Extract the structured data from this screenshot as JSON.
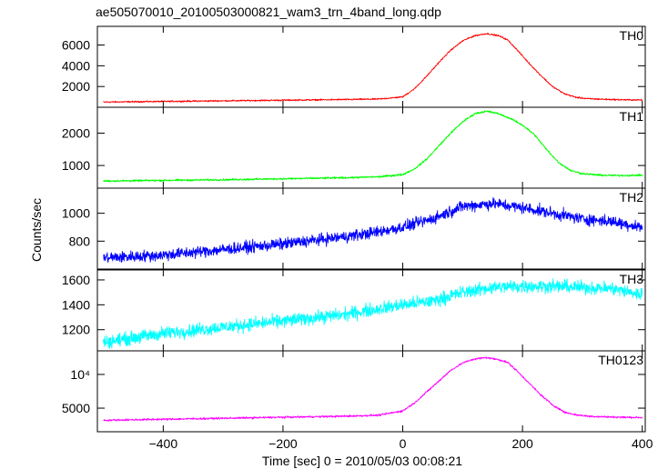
{
  "chart_data": {
    "type": "line",
    "title": "ae505070010_20100503000821_wam3_trn_4band_long.qdp",
    "xlabel": "Time [sec] 0 = 2010/05/03 00:08:21",
    "ylabel": "Counts/sec",
    "xlim": [
      -510,
      405
    ],
    "x_ticks": [
      -400,
      -200,
      0,
      200,
      400
    ],
    "x_tick_labels": [
      "−400",
      "−200",
      "0",
      "200",
      "400"
    ],
    "grid": false,
    "panels": [
      {
        "name": "TH0",
        "color": "#ff0000",
        "ylim": [
          0,
          7800
        ],
        "y_ticks": [
          2000,
          4000,
          6000
        ],
        "y_tick_labels": [
          "2000",
          "4000",
          "6000"
        ],
        "noise": 60,
        "x": [
          -500,
          -400,
          -300,
          -200,
          -100,
          -40,
          0,
          20,
          40,
          60,
          80,
          100,
          120,
          140,
          160,
          175,
          190,
          210,
          230,
          250,
          270,
          290,
          310,
          340,
          370,
          400
        ],
        "y": [
          500,
          560,
          620,
          680,
          740,
          790,
          1000,
          1800,
          3000,
          4300,
          5500,
          6400,
          6900,
          7100,
          6900,
          6500,
          5600,
          4300,
          3100,
          2000,
          1300,
          950,
          820,
          760,
          720,
          700
        ]
      },
      {
        "name": "TH1",
        "color": "#00ff00",
        "ylim": [
          300,
          2800
        ],
        "y_ticks": [
          1000,
          2000
        ],
        "y_tick_labels": [
          "1000",
          "2000"
        ],
        "noise": 25,
        "x": [
          -500,
          -400,
          -300,
          -200,
          -100,
          -40,
          0,
          20,
          40,
          60,
          80,
          100,
          120,
          140,
          160,
          180,
          200,
          220,
          240,
          260,
          280,
          300,
          330,
          360,
          400
        ],
        "y": [
          520,
          540,
          560,
          590,
          620,
          650,
          720,
          900,
          1200,
          1600,
          2000,
          2350,
          2600,
          2680,
          2600,
          2450,
          2250,
          1950,
          1500,
          1100,
          850,
          750,
          700,
          690,
          700
        ]
      },
      {
        "name": "TH2",
        "color": "#0000ff",
        "ylim": [
          600,
          1180
        ],
        "y_ticks": [
          800,
          1000
        ],
        "y_tick_labels": [
          "800",
          "1000"
        ],
        "noise": 35,
        "x": [
          -500,
          -400,
          -300,
          -200,
          -100,
          -50,
          0,
          50,
          100,
          150,
          200,
          250,
          300,
          350,
          400
        ],
        "y": [
          680,
          700,
          740,
          780,
          830,
          860,
          900,
          960,
          1050,
          1070,
          1040,
          1000,
          960,
          940,
          900
        ]
      },
      {
        "name": "TH3",
        "color": "#00ffff",
        "ylim": [
          1030,
          1680
        ],
        "y_ticks": [
          1200,
          1400,
          1600
        ],
        "y_tick_labels": [
          "1200",
          "1400",
          "1600"
        ],
        "noise": 45,
        "x": [
          -500,
          -400,
          -300,
          -200,
          -100,
          0,
          50,
          100,
          150,
          200,
          250,
          300,
          350,
          400
        ],
        "y": [
          1100,
          1170,
          1220,
          1270,
          1320,
          1400,
          1430,
          1500,
          1540,
          1550,
          1550,
          1540,
          1530,
          1480
        ]
      },
      {
        "name": "TH0123",
        "color": "#ff00ff",
        "ylim": [
          1500,
          13500
        ],
        "y_ticks": [
          5000,
          10000
        ],
        "y_tick_labels": [
          "5000",
          "10⁴"
        ],
        "noise": 120,
        "x": [
          -500,
          -400,
          -300,
          -200,
          -100,
          -40,
          0,
          20,
          40,
          60,
          80,
          100,
          120,
          140,
          160,
          175,
          190,
          210,
          230,
          250,
          270,
          290,
          310,
          340,
          370,
          400
        ],
        "y": [
          3200,
          3350,
          3500,
          3650,
          3800,
          3950,
          4600,
          5800,
          7400,
          9000,
          10600,
          11700,
          12300,
          12500,
          12200,
          11800,
          10600,
          8800,
          7000,
          5500,
          4400,
          4000,
          3800,
          3700,
          3650,
          3600
        ]
      }
    ]
  }
}
